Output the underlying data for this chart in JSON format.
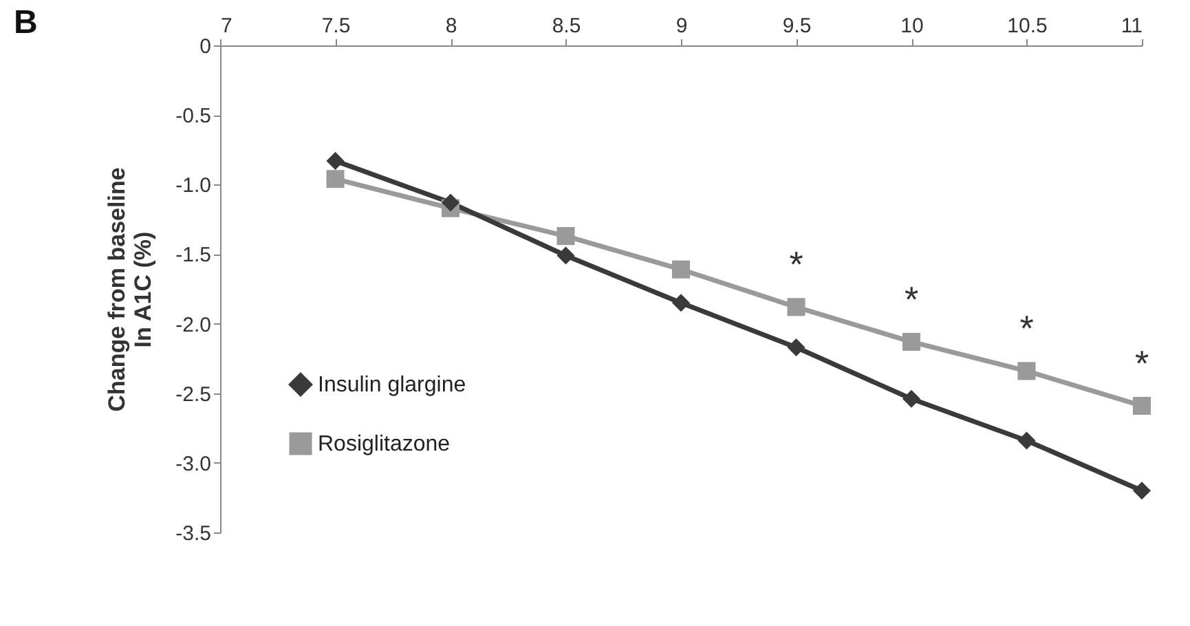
{
  "chart_data": {
    "type": "line",
    "title": "B",
    "ylabel": "Change from baseline\nIn A1C (%)",
    "x": [
      7.5,
      8,
      8.5,
      9,
      9.5,
      10,
      10.5,
      11
    ],
    "xlim": [
      7,
      11
    ],
    "xticks": [
      7,
      7.5,
      8,
      8.5,
      9,
      9.5,
      10,
      10.5,
      11
    ],
    "ylim": [
      -3.5,
      0
    ],
    "yticks": [
      0,
      {
        "value": -0.5,
        "label": "-0.5"
      },
      {
        "value": -1,
        "label": "-1.0"
      },
      {
        "value": -1.5,
        "label": "-1.5"
      },
      {
        "value": -2,
        "label": "-2.0"
      },
      {
        "value": -2.5,
        "label": "-2.5"
      },
      {
        "value": -3,
        "label": "-3.0"
      },
      {
        "value": -3.5,
        "label": "-3.5"
      }
    ],
    "series": [
      {
        "name": "Insulin glargine",
        "color": "#3a3a3a",
        "marker": "diamond",
        "values": [
          -0.83,
          -1.13,
          -1.51,
          -1.85,
          -2.17,
          -2.54,
          -2.84,
          -3.2
        ]
      },
      {
        "name": "Rosiglitazone",
        "color": "#9a9a9a",
        "marker": "square",
        "values": [
          -0.96,
          -1.17,
          -1.37,
          -1.61,
          -1.88,
          -2.13,
          -2.34,
          -2.59
        ]
      }
    ],
    "annotations": [
      {
        "text": "*",
        "x": 9.5,
        "y": -1.88
      },
      {
        "text": "*",
        "x": 10,
        "y": -2.13
      },
      {
        "text": "*",
        "x": 10.5,
        "y": -2.34
      },
      {
        "text": "*",
        "x": 11,
        "y": -2.59
      }
    ],
    "legend": "bottom left",
    "grid": false
  }
}
